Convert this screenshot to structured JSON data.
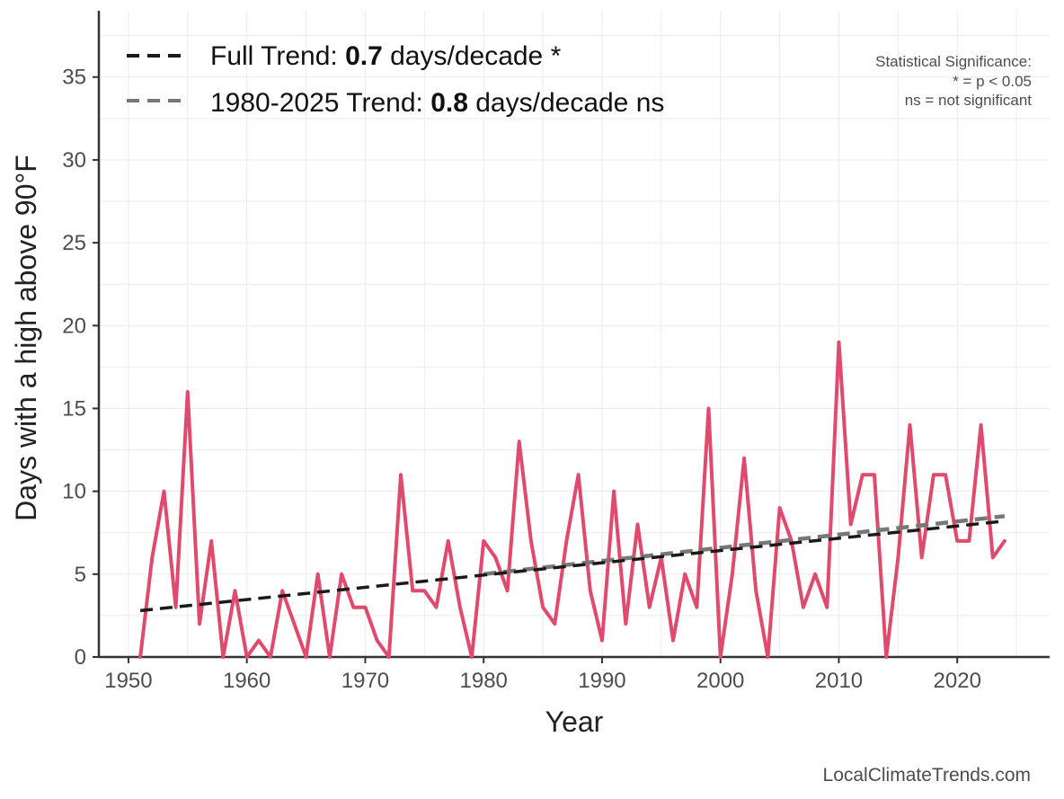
{
  "chart_data": {
    "type": "line",
    "xlabel": "Year",
    "ylabel": "Days with a high above 90°F",
    "xlim": [
      1947.5,
      2027.8
    ],
    "ylim": [
      0,
      39
    ],
    "x_ticks": [
      1950,
      1960,
      1970,
      1980,
      1990,
      2000,
      2010,
      2020
    ],
    "y_ticks": [
      0,
      5,
      10,
      15,
      20,
      25,
      30,
      35
    ],
    "grid": true,
    "legend_position": "top-left",
    "series": [
      {
        "color": "#e04a6c",
        "x": [
          1951,
          1952,
          1953,
          1954,
          1955,
          1956,
          1957,
          1958,
          1959,
          1960,
          1961,
          1962,
          1963,
          1964,
          1965,
          1966,
          1967,
          1968,
          1969,
          1970,
          1971,
          1972,
          1973,
          1974,
          1975,
          1976,
          1977,
          1978,
          1979,
          1980,
          1981,
          1982,
          1983,
          1984,
          1985,
          1986,
          1987,
          1988,
          1989,
          1990,
          1991,
          1992,
          1993,
          1994,
          1995,
          1996,
          1997,
          1998,
          1999,
          2000,
          2001,
          2002,
          2003,
          2004,
          2005,
          2006,
          2007,
          2008,
          2009,
          2010,
          2011,
          2012,
          2013,
          2014,
          2015,
          2016,
          2017,
          2018,
          2019,
          2020,
          2021,
          2022,
          2023,
          2024
        ],
        "y": [
          0,
          6,
          10,
          3,
          16,
          2,
          7,
          0,
          4,
          0,
          1,
          0,
          4,
          2,
          0,
          5,
          0,
          5,
          3,
          3,
          1,
          0,
          11,
          4,
          4,
          3,
          7,
          3,
          0,
          7,
          6,
          4,
          13,
          7,
          3,
          2,
          7,
          11,
          4,
          1,
          10,
          2,
          8,
          3,
          6,
          1,
          5,
          3,
          15,
          0,
          5,
          12,
          4,
          0,
          9,
          7,
          3,
          5,
          3,
          19,
          8,
          11,
          11,
          0,
          6,
          14,
          6,
          11,
          11,
          7,
          7,
          14,
          6,
          7
        ]
      },
      {
        "name": "Full Trend",
        "color": "#1a1a1a",
        "style": "dashed",
        "x": [
          1951,
          2024
        ],
        "y": [
          2.8,
          8.2
        ]
      },
      {
        "name": "1980-2025 Trend",
        "color": "#777777",
        "style": "dashed",
        "x": [
          1980,
          2024
        ],
        "y": [
          5.0,
          8.5
        ]
      }
    ]
  },
  "legend": [
    {
      "prefix": "Full Trend: ",
      "value": "0.7",
      "suffix": " days/decade *",
      "color": "#1a1a1a"
    },
    {
      "prefix": "1980-2025 Trend: ",
      "value": "0.8",
      "suffix": " days/decade ns",
      "color": "#777777"
    }
  ],
  "significance_note": {
    "line1": "Statistical Significance:",
    "line2": "* = p < 0.05",
    "line3": "ns = not significant"
  },
  "credit": "LocalClimateTrends.com"
}
